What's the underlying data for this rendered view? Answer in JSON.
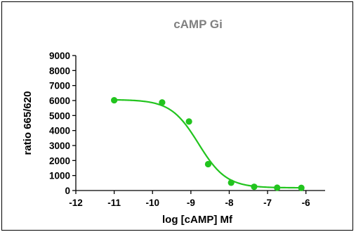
{
  "chart_data": {
    "type": "scatter",
    "title": "cAMP Gi",
    "xlabel": "log [cAMP] Mf",
    "ylabel": "ratio 665/620",
    "xlim": [
      -12,
      -5.5
    ],
    "ylim": [
      0,
      9000
    ],
    "x_ticks": [
      -12,
      -11,
      -10,
      -9,
      -8,
      -7,
      -6
    ],
    "y_ticks": [
      0,
      1000,
      2000,
      3000,
      4000,
      5000,
      6000,
      7000,
      8000,
      9000
    ],
    "grid": false,
    "legend": "none",
    "series": [
      {
        "color": "#22c41e",
        "points": [
          {
            "x": -11.0,
            "y": 6020
          },
          {
            "x": -9.75,
            "y": 5870
          },
          {
            "x": -9.05,
            "y": 4600
          },
          {
            "x": -8.55,
            "y": 1760
          },
          {
            "x": -7.95,
            "y": 520
          },
          {
            "x": -7.35,
            "y": 250
          },
          {
            "x": -6.75,
            "y": 190
          },
          {
            "x": -6.12,
            "y": 175
          }
        ],
        "fit": {
          "model": "four-parameter-logistic",
          "top": 6060,
          "bottom": 180,
          "logIC50": -8.8,
          "hill_slope": -1.2
        }
      }
    ]
  }
}
